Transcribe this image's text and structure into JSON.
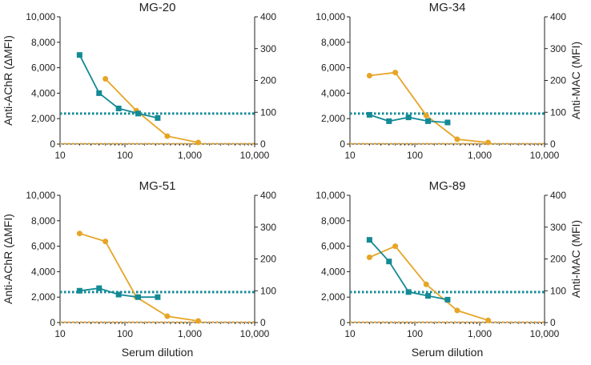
{
  "chart_data": [
    {
      "type": "line",
      "title": "MG-20",
      "ylabel_left": "Anti-AChR (ΔMFI)",
      "ylabel_right": "Anti-MAC (MFI)",
      "xlabel": "",
      "x_scale": "log",
      "xlim": [
        10,
        10000
      ],
      "xticks": [
        "10",
        "100",
        "1,000",
        "10,000"
      ],
      "ylim_left": [
        0,
        10000
      ],
      "yticks_left": [
        "0",
        "2,000",
        "4,000",
        "6,000",
        "8,000",
        "10,000"
      ],
      "ylim_right": [
        0,
        400
      ],
      "yticks_right": [
        "0",
        "100",
        "200",
        "300",
        "400"
      ],
      "series": [
        {
          "name": "Anti-AChR",
          "axis": "left",
          "marker": "square",
          "color": "#138a96",
          "x": [
            20,
            40,
            80,
            160,
            320
          ],
          "values": [
            7000,
            4000,
            2800,
            2400,
            2050
          ]
        },
        {
          "name": "Anti-MAC",
          "axis": "right",
          "marker": "circle",
          "color": "#e6a526",
          "x": [
            50,
            150,
            450,
            1350
          ],
          "values": [
            205,
            105,
            25,
            5
          ]
        }
      ],
      "reference_lines": [
        {
          "axis": "left",
          "value": 2400,
          "color": "#138a96",
          "style": "dotted"
        },
        {
          "axis": "right",
          "value": 0,
          "color": "#e6a526",
          "style": "dotted"
        }
      ]
    },
    {
      "type": "line",
      "title": "MG-34",
      "ylabel_left": "Anti-AChR (ΔMFI)",
      "ylabel_right": "Anti-MAC (MFI)",
      "xlabel": "",
      "x_scale": "log",
      "xlim": [
        10,
        10000
      ],
      "xticks": [
        "10",
        "100",
        "1,000",
        "10,000"
      ],
      "ylim_left": [
        0,
        10000
      ],
      "yticks_left": [
        "0",
        "2,000",
        "4,000",
        "6,000",
        "8,000",
        "10,000"
      ],
      "ylim_right": [
        0,
        400
      ],
      "yticks_right": [
        "0",
        "100",
        "200",
        "300",
        "400"
      ],
      "series": [
        {
          "name": "Anti-AChR",
          "axis": "left",
          "marker": "square",
          "color": "#138a96",
          "x": [
            20,
            40,
            80,
            160,
            320
          ],
          "values": [
            2300,
            1800,
            2100,
            1800,
            1700
          ]
        },
        {
          "name": "Anti-MAC",
          "axis": "right",
          "marker": "circle",
          "color": "#e6a526",
          "x": [
            20,
            50,
            150,
            450,
            1350
          ],
          "values": [
            215,
            225,
            90,
            15,
            5
          ]
        }
      ],
      "reference_lines": [
        {
          "axis": "left",
          "value": 2400,
          "color": "#138a96",
          "style": "dotted"
        },
        {
          "axis": "right",
          "value": 0,
          "color": "#e6a526",
          "style": "dotted"
        }
      ]
    },
    {
      "type": "line",
      "title": "MG-51",
      "ylabel_left": "Anti-AChR (ΔMFI)",
      "ylabel_right": "Anti-MAC (MFI)",
      "xlabel": "Serum dilution",
      "x_scale": "log",
      "xlim": [
        10,
        10000
      ],
      "xticks": [
        "10",
        "100",
        "1,000",
        "10,000"
      ],
      "ylim_left": [
        0,
        10000
      ],
      "yticks_left": [
        "0",
        "2,000",
        "4,000",
        "6,000",
        "8,000",
        "10,000"
      ],
      "ylim_right": [
        0,
        400
      ],
      "yticks_right": [
        "0",
        "100",
        "200",
        "300",
        "400"
      ],
      "series": [
        {
          "name": "Anti-AChR",
          "axis": "left",
          "marker": "square",
          "color": "#138a96",
          "x": [
            20,
            40,
            80,
            160,
            320
          ],
          "values": [
            2500,
            2700,
            2200,
            2000,
            2000
          ]
        },
        {
          "name": "Anti-MAC",
          "axis": "right",
          "marker": "circle",
          "color": "#e6a526",
          "x": [
            20,
            50,
            150,
            450,
            1350
          ],
          "values": [
            280,
            255,
            80,
            20,
            5
          ]
        }
      ],
      "reference_lines": [
        {
          "axis": "left",
          "value": 2400,
          "color": "#138a96",
          "style": "dotted"
        },
        {
          "axis": "right",
          "value": 0,
          "color": "#e6a526",
          "style": "dotted"
        }
      ]
    },
    {
      "type": "line",
      "title": "MG-89",
      "ylabel_left": "Anti-AChR (ΔMFI)",
      "ylabel_right": "Anti-MAC (MFI)",
      "xlabel": "Serum dilution",
      "x_scale": "log",
      "xlim": [
        10,
        10000
      ],
      "xticks": [
        "10",
        "100",
        "1,000",
        "10,000"
      ],
      "ylim_left": [
        0,
        10000
      ],
      "yticks_left": [
        "0",
        "2,000",
        "4,000",
        "6,000",
        "8,000",
        "10,000"
      ],
      "ylim_right": [
        0,
        400
      ],
      "yticks_right": [
        "0",
        "100",
        "200",
        "300",
        "400"
      ],
      "series": [
        {
          "name": "Anti-AChR",
          "axis": "left",
          "marker": "square",
          "color": "#138a96",
          "x": [
            20,
            40,
            80,
            160,
            320
          ],
          "values": [
            6500,
            4800,
            2400,
            2100,
            1800
          ]
        },
        {
          "name": "Anti-MAC",
          "axis": "right",
          "marker": "circle",
          "color": "#e6a526",
          "x": [
            20,
            50,
            150,
            450,
            1350
          ],
          "values": [
            205,
            240,
            120,
            38,
            7
          ]
        }
      ],
      "reference_lines": [
        {
          "axis": "left",
          "value": 2400,
          "color": "#138a96",
          "style": "dotted"
        },
        {
          "axis": "right",
          "value": 0,
          "color": "#e6a526",
          "style": "dotted"
        }
      ]
    }
  ]
}
